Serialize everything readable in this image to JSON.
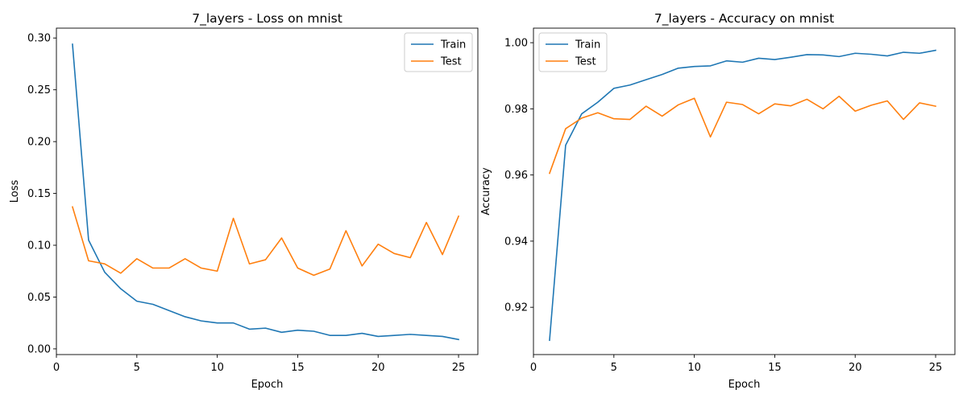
{
  "chart_data": [
    {
      "type": "line",
      "title": "7_layers - Loss on mnist",
      "xlabel": "Epoch",
      "ylabel": "Loss",
      "xlim": [
        0,
        26.2
      ],
      "ylim": [
        -0.0055,
        0.3095
      ],
      "xticks": [
        0,
        5,
        10,
        15,
        20,
        25
      ],
      "yticks": [
        0.0,
        0.05,
        0.1,
        0.15,
        0.2,
        0.25,
        0.3
      ],
      "ytick_decimals": 2,
      "legend_position": "top-right",
      "grid": false,
      "x": [
        1,
        2,
        3,
        4,
        5,
        6,
        7,
        8,
        9,
        10,
        11,
        12,
        13,
        14,
        15,
        16,
        17,
        18,
        19,
        20,
        21,
        22,
        23,
        24,
        25
      ],
      "series": [
        {
          "name": "Train",
          "color": "#1f77b4",
          "values": [
            0.294,
            0.105,
            0.074,
            0.058,
            0.046,
            0.043,
            0.037,
            0.031,
            0.027,
            0.025,
            0.025,
            0.019,
            0.02,
            0.016,
            0.018,
            0.017,
            0.013,
            0.013,
            0.015,
            0.012,
            0.013,
            0.014,
            0.013,
            0.012,
            0.009
          ]
        },
        {
          "name": "Test",
          "color": "#ff7f0e",
          "values": [
            0.137,
            0.085,
            0.082,
            0.073,
            0.087,
            0.078,
            0.078,
            0.087,
            0.078,
            0.075,
            0.126,
            0.082,
            0.086,
            0.107,
            0.078,
            0.071,
            0.077,
            0.114,
            0.08,
            0.101,
            0.092,
            0.088,
            0.122,
            0.091,
            0.128
          ]
        }
      ]
    },
    {
      "type": "line",
      "title": "7_layers - Accuracy on mnist",
      "xlabel": "Epoch",
      "ylabel": "Accuracy",
      "xlim": [
        0,
        26.2
      ],
      "ylim": [
        0.9057,
        1.0044
      ],
      "xticks": [
        0,
        5,
        10,
        15,
        20,
        25
      ],
      "yticks": [
        0.92,
        0.94,
        0.96,
        0.98,
        1.0
      ],
      "ytick_decimals": 2,
      "legend_position": "top-left",
      "grid": false,
      "x": [
        1,
        2,
        3,
        4,
        5,
        6,
        7,
        8,
        9,
        10,
        11,
        12,
        13,
        14,
        15,
        16,
        17,
        18,
        19,
        20,
        21,
        22,
        23,
        24,
        25
      ],
      "series": [
        {
          "name": "Train",
          "color": "#1f77b4",
          "values": [
            0.91,
            0.969,
            0.9785,
            0.982,
            0.9862,
            0.9872,
            0.9888,
            0.9904,
            0.9923,
            0.9928,
            0.993,
            0.9945,
            0.9941,
            0.9953,
            0.9949,
            0.9956,
            0.9964,
            0.9963,
            0.9958,
            0.9968,
            0.9965,
            0.996,
            0.9971,
            0.9968,
            0.9977
          ]
        },
        {
          "name": "Test",
          "color": "#ff7f0e",
          "values": [
            0.9605,
            0.974,
            0.9772,
            0.9788,
            0.977,
            0.9768,
            0.9808,
            0.9778,
            0.9812,
            0.9832,
            0.9715,
            0.982,
            0.9813,
            0.9785,
            0.9815,
            0.9809,
            0.9829,
            0.98,
            0.9838,
            0.9793,
            0.9811,
            0.9824,
            0.9768,
            0.9818,
            0.9808
          ]
        }
      ]
    }
  ]
}
